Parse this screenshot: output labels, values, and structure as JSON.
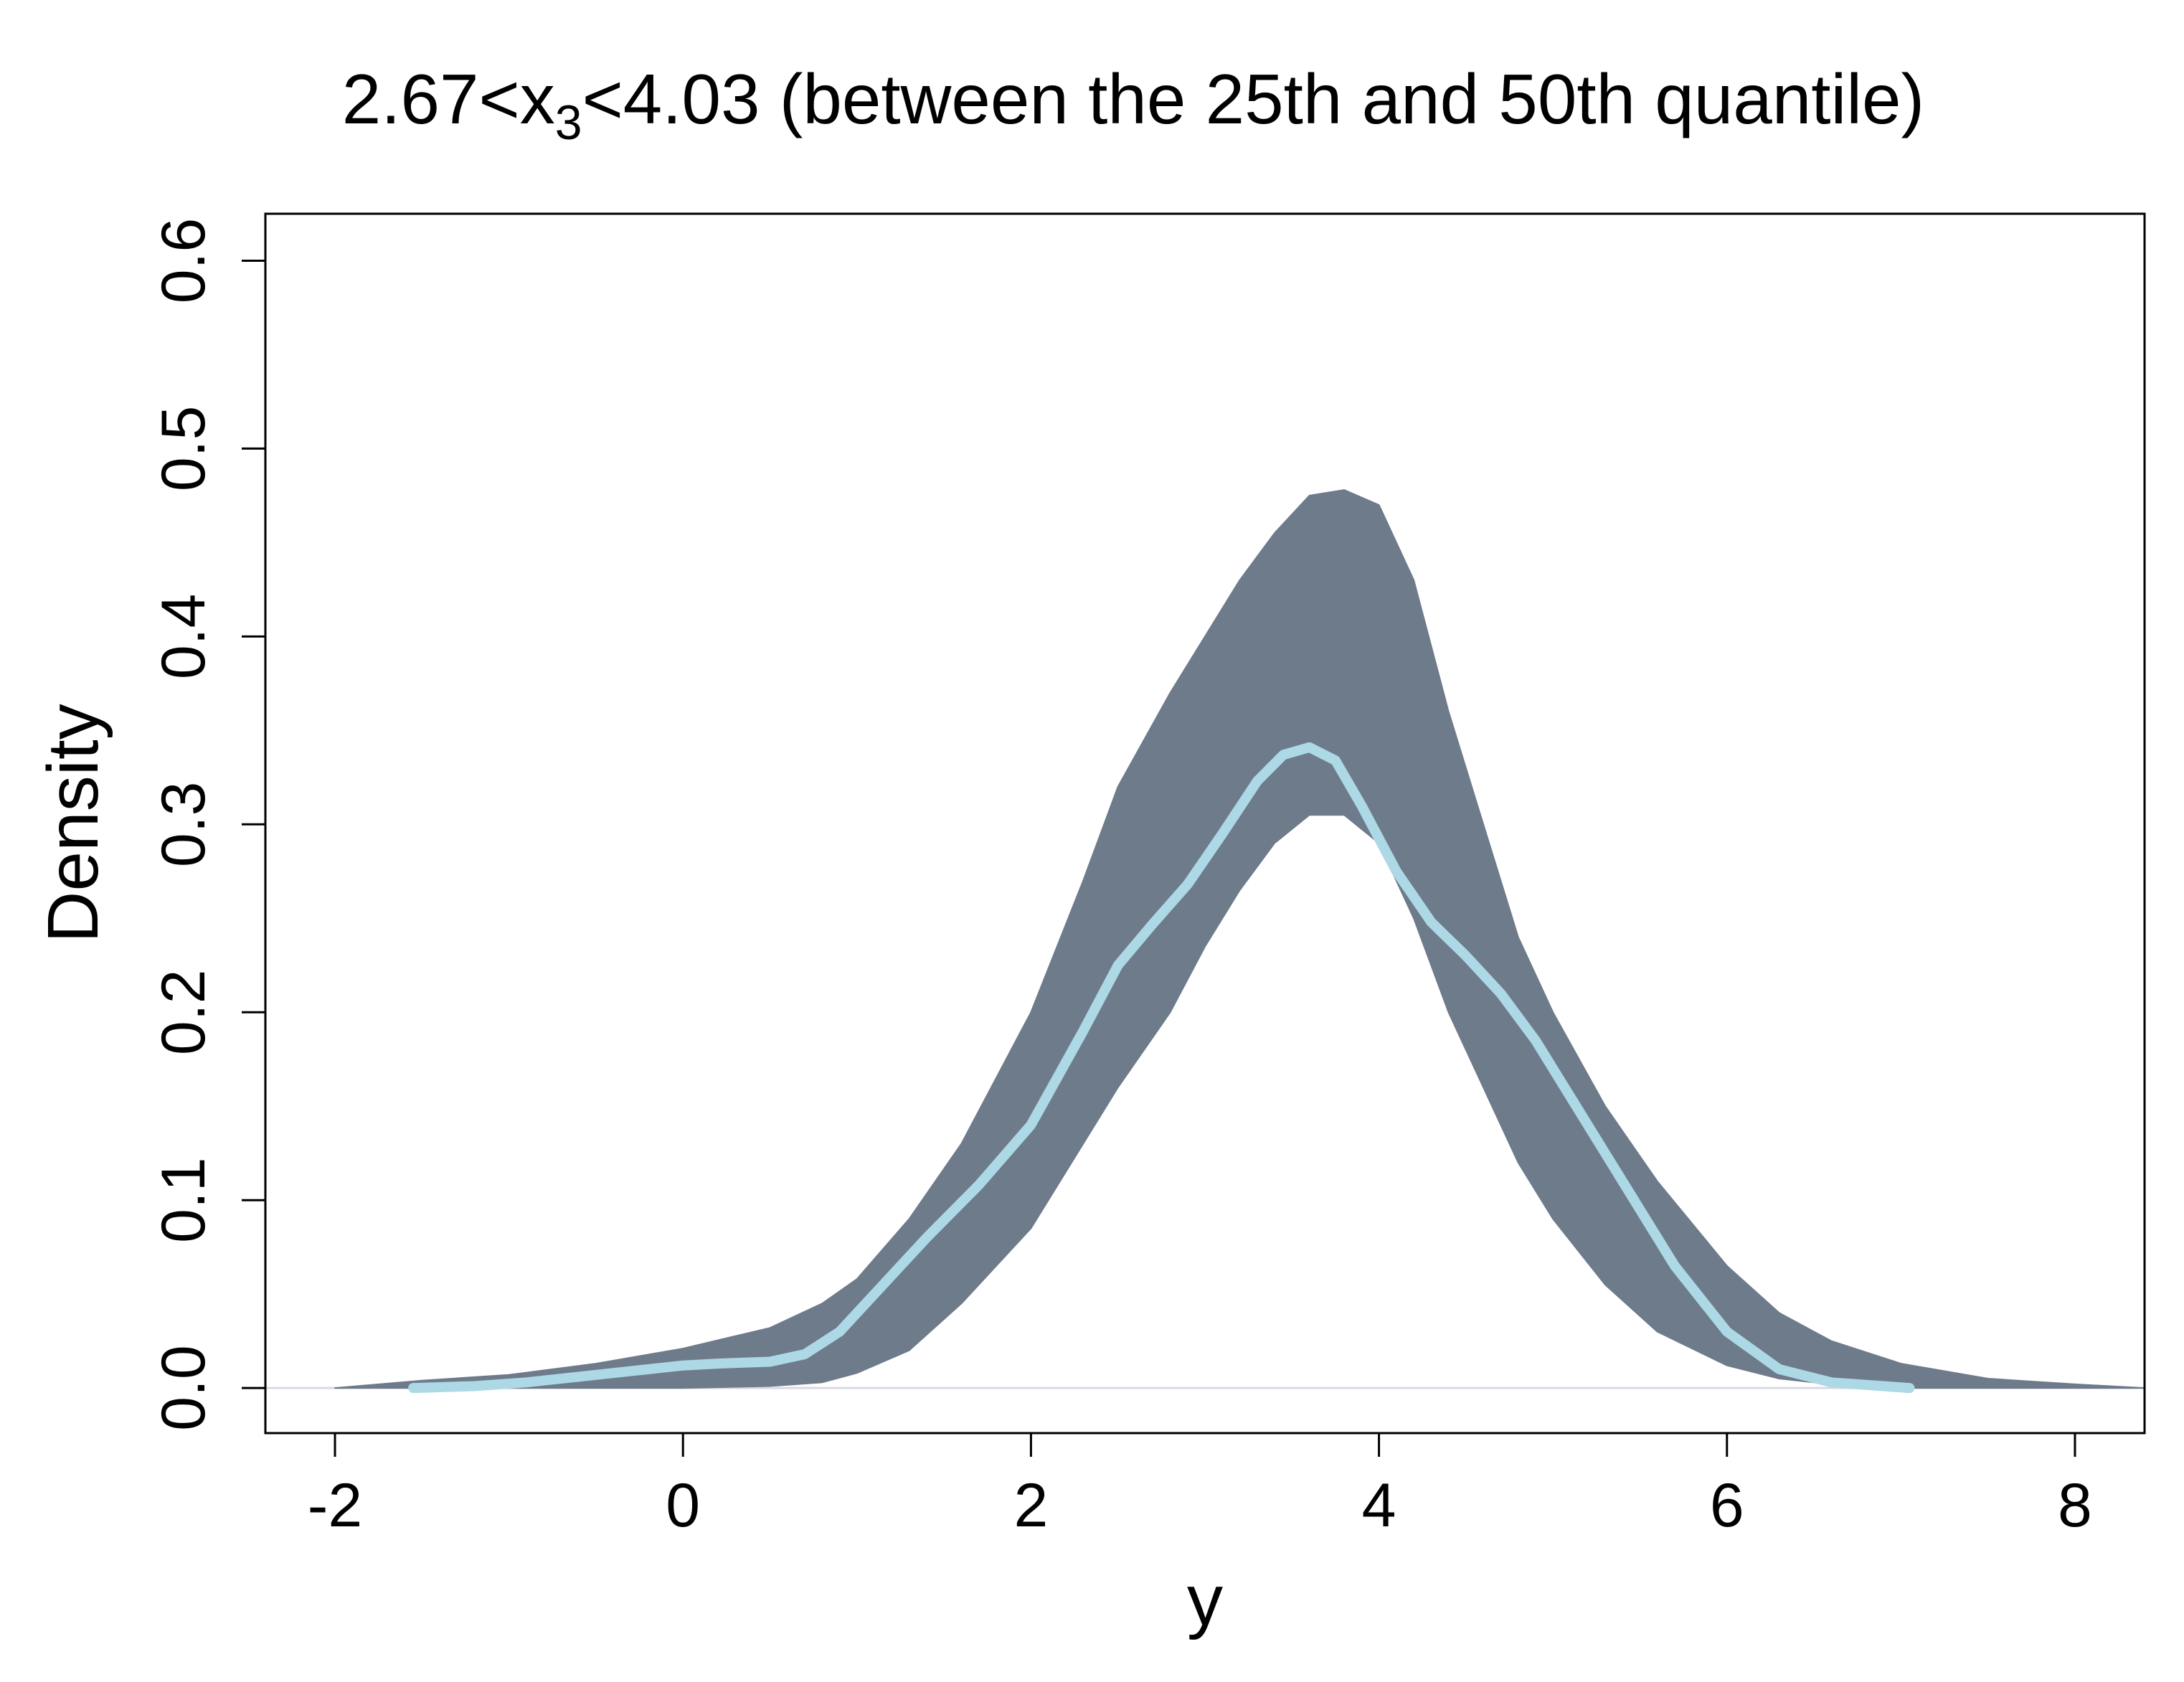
{
  "chart_data": {
    "type": "line",
    "title": {
      "prefix": "2.67<x",
      "subscript": "3",
      "suffix": "<4.03 (between the 25th and 50th quantile)"
    },
    "xlabel": "y",
    "ylabel": "Density",
    "xlim": [
      -2.4,
      8.4
    ],
    "ylim": [
      -0.024,
      0.625
    ],
    "x_ticks": [
      -2,
      0,
      2,
      4,
      6,
      8
    ],
    "x_tick_labels": [
      "-2",
      "0",
      "2",
      "4",
      "6",
      "8"
    ],
    "y_ticks": [
      0.0,
      0.1,
      0.2,
      0.3,
      0.4,
      0.5,
      0.6
    ],
    "y_tick_labels": [
      "0.0",
      "0.1",
      "0.2",
      "0.3",
      "0.4",
      "0.5",
      "0.6"
    ],
    "grid": false,
    "baseline": {
      "y": 0.0,
      "color": "#d9d9e3"
    },
    "series": [
      {
        "role": "band",
        "color": "#6e7b8b",
        "x": [
          -2.0,
          -1.5,
          -1.0,
          -0.5,
          0.0,
          0.5,
          0.8,
          1.0,
          1.3,
          1.6,
          2.0,
          2.3,
          2.5,
          2.8,
          3.0,
          3.2,
          3.4,
          3.6,
          3.8,
          4.0,
          4.2,
          4.4,
          4.6,
          4.8,
          5.0,
          5.3,
          5.6,
          6.0,
          6.3,
          6.6,
          7.0,
          7.5,
          8.0,
          8.4
        ],
        "upper": [
          0.0,
          0.004,
          0.007,
          0.013,
          0.021,
          0.032,
          0.045,
          0.058,
          0.09,
          0.13,
          0.2,
          0.27,
          0.32,
          0.37,
          0.4,
          0.43,
          0.455,
          0.475,
          0.478,
          0.47,
          0.43,
          0.36,
          0.3,
          0.24,
          0.2,
          0.15,
          0.11,
          0.065,
          0.04,
          0.025,
          0.013,
          0.005,
          0.002,
          0.0
        ],
        "lower": [
          0.0,
          0.0,
          0.0,
          0.0,
          0.0,
          0.001,
          0.003,
          0.008,
          0.02,
          0.045,
          0.085,
          0.13,
          0.16,
          0.2,
          0.235,
          0.265,
          0.29,
          0.305,
          0.305,
          0.29,
          0.25,
          0.2,
          0.16,
          0.12,
          0.09,
          0.055,
          0.03,
          0.012,
          0.005,
          0.002,
          0.0,
          0.0,
          0.0,
          0.0
        ]
      },
      {
        "role": "mean",
        "color": "#add8e6",
        "x": [
          -1.55,
          -1.2,
          -0.9,
          -0.6,
          -0.3,
          0.0,
          0.2,
          0.5,
          0.7,
          0.9,
          1.1,
          1.4,
          1.7,
          2.0,
          2.3,
          2.5,
          2.7,
          2.9,
          3.1,
          3.3,
          3.45,
          3.6,
          3.75,
          3.9,
          4.1,
          4.3,
          4.5,
          4.7,
          4.9,
          5.1,
          5.4,
          5.7,
          6.0,
          6.3,
          6.6,
          6.9,
          7.05
        ],
        "values": [
          0.0,
          0.001,
          0.003,
          0.006,
          0.009,
          0.012,
          0.013,
          0.014,
          0.018,
          0.03,
          0.05,
          0.08,
          0.108,
          0.14,
          0.19,
          0.225,
          0.247,
          0.268,
          0.295,
          0.323,
          0.337,
          0.341,
          0.334,
          0.31,
          0.275,
          0.248,
          0.23,
          0.21,
          0.185,
          0.155,
          0.11,
          0.065,
          0.03,
          0.01,
          0.003,
          0.001,
          0.0
        ]
      }
    ]
  }
}
